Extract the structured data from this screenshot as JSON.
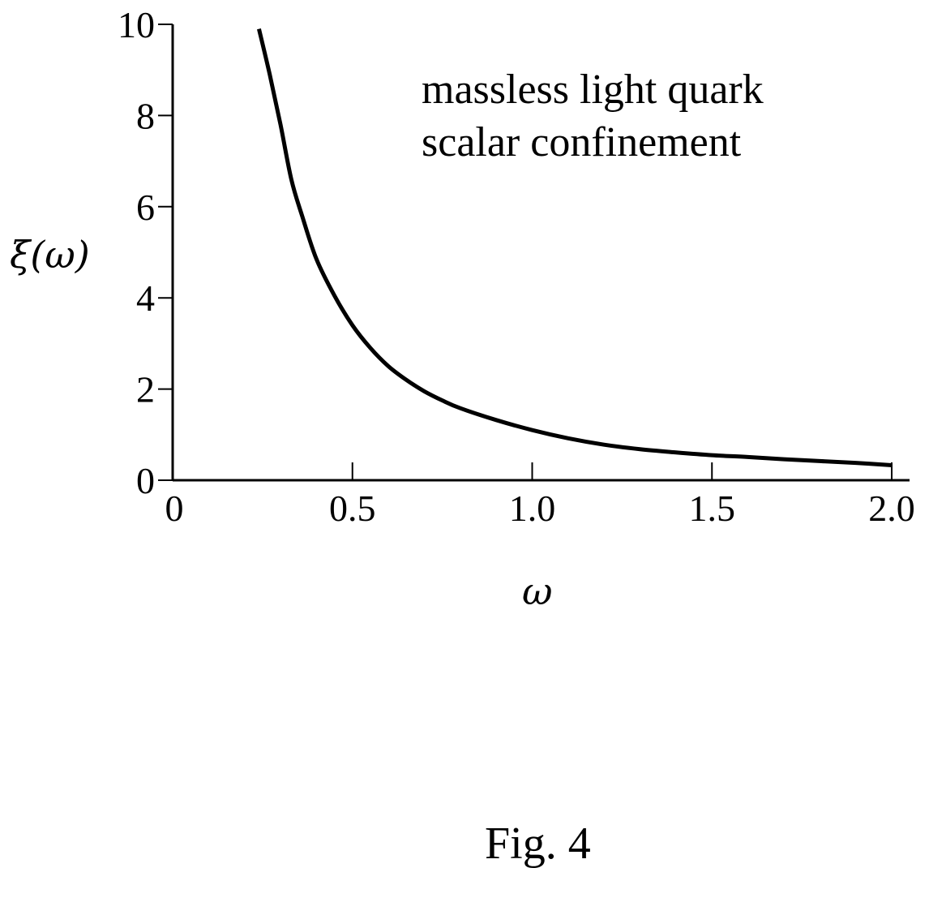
{
  "chart_data": {
    "type": "line",
    "xlabel": "ω",
    "ylabel": "ξ(ω)",
    "xlim": [
      0,
      2.0
    ],
    "ylim": [
      0,
      10
    ],
    "x_ticks": [
      0,
      0.5,
      1.0,
      1.5,
      2.0
    ],
    "x_tick_labels": [
      "0",
      "0.5",
      "1.0",
      "1.5",
      "2.0"
    ],
    "y_ticks": [
      0,
      2,
      4,
      6,
      8,
      10
    ],
    "y_tick_labels": [
      "0",
      "2",
      "4",
      "6",
      "8",
      "10"
    ],
    "grid": false,
    "annotation_lines": [
      "massless light quark",
      "scalar confinement"
    ],
    "series": [
      {
        "x": [
          0.24,
          0.27,
          0.3,
          0.33,
          0.36,
          0.4,
          0.45,
          0.5,
          0.55,
          0.6,
          0.65,
          0.7,
          0.75,
          0.8,
          0.9,
          1.0,
          1.1,
          1.2,
          1.3,
          1.4,
          1.5,
          1.6,
          1.7,
          1.8,
          1.9,
          2.0
        ],
        "y": [
          9.9,
          8.9,
          7.8,
          6.6,
          5.8,
          4.85,
          4.05,
          3.4,
          2.9,
          2.5,
          2.2,
          1.95,
          1.75,
          1.58,
          1.32,
          1.1,
          0.92,
          0.78,
          0.68,
          0.61,
          0.55,
          0.51,
          0.46,
          0.42,
          0.38,
          0.33
        ],
        "color": "#000000"
      }
    ]
  },
  "caption": "Fig. 4"
}
